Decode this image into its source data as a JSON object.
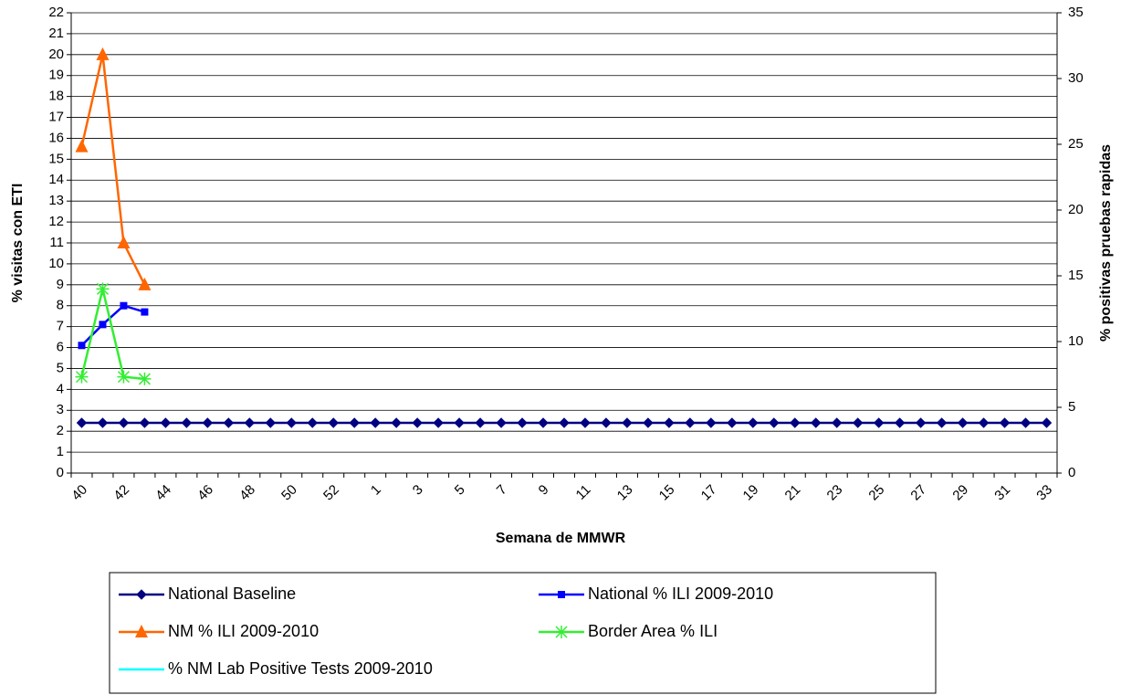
{
  "chart_data": {
    "type": "line",
    "xlabel": "Semana de MMWR",
    "ylabel": "% visitas con ETI",
    "y2label": "% positivas pruebas rapidas",
    "categories": [
      "40",
      null,
      "42",
      null,
      "44",
      null,
      "46",
      null,
      "48",
      null,
      "50",
      null,
      "52",
      null,
      "1",
      null,
      "3",
      null,
      "5",
      null,
      "7",
      null,
      "9",
      null,
      "11",
      null,
      "13",
      null,
      "15",
      null,
      "17",
      null,
      "19",
      null,
      "21",
      null,
      "23",
      null,
      "25",
      null,
      "27",
      null,
      "29",
      null,
      "31",
      null,
      "33"
    ],
    "ylim": [
      0,
      22
    ],
    "yticks": [
      0,
      1,
      2,
      3,
      4,
      5,
      6,
      7,
      8,
      9,
      10,
      11,
      12,
      13,
      14,
      15,
      16,
      17,
      18,
      19,
      20,
      21,
      22
    ],
    "y2lim": [
      0,
      35
    ],
    "y2ticks": [
      0,
      5,
      10,
      15,
      20,
      25,
      30,
      35
    ],
    "grid": true,
    "series": [
      {
        "name": "National Baseline",
        "color": "#000080",
        "marker": "diamond",
        "values": [
          2.4,
          2.4,
          2.4,
          2.4,
          2.4,
          2.4,
          2.4,
          2.4,
          2.4,
          2.4,
          2.4,
          2.4,
          2.4,
          2.4,
          2.4,
          2.4,
          2.4,
          2.4,
          2.4,
          2.4,
          2.4,
          2.4,
          2.4,
          2.4,
          2.4,
          2.4,
          2.4,
          2.4,
          2.4,
          2.4,
          2.4,
          2.4,
          2.4,
          2.4,
          2.4,
          2.4,
          2.4,
          2.4,
          2.4,
          2.4,
          2.4,
          2.4,
          2.4,
          2.4,
          2.4,
          2.4,
          2.4
        ]
      },
      {
        "name": "National % ILI 2009-2010",
        "color": "#0000ff",
        "marker": "square",
        "values": [
          6.1,
          7.1,
          8.0,
          7.7,
          null,
          null,
          null,
          null,
          null,
          null,
          null,
          null,
          null,
          null,
          null,
          null,
          null,
          null,
          null,
          null,
          null,
          null,
          null,
          null,
          null,
          null,
          null,
          null,
          null,
          null,
          null,
          null,
          null,
          null,
          null,
          null,
          null,
          null,
          null,
          null,
          null,
          null,
          null,
          null,
          null,
          null,
          null
        ]
      },
      {
        "name": "NM % ILI 2009-2010",
        "color": "#ff6600",
        "marker": "triangle",
        "values": [
          15.6,
          20,
          11,
          9,
          null,
          null,
          null,
          null,
          null,
          null,
          null,
          null,
          null,
          null,
          null,
          null,
          null,
          null,
          null,
          null,
          null,
          null,
          null,
          null,
          null,
          null,
          null,
          null,
          null,
          null,
          null,
          null,
          null,
          null,
          null,
          null,
          null,
          null,
          null,
          null,
          null,
          null,
          null,
          null,
          null,
          null,
          null
        ]
      },
      {
        "name": "Border Area % ILI",
        "color": "#33ee33",
        "marker": "asterisk",
        "values": [
          4.6,
          8.8,
          4.6,
          4.5,
          null,
          null,
          null,
          null,
          null,
          null,
          null,
          null,
          null,
          null,
          null,
          null,
          null,
          null,
          null,
          null,
          null,
          null,
          null,
          null,
          null,
          null,
          null,
          null,
          null,
          null,
          null,
          null,
          null,
          null,
          null,
          null,
          null,
          null,
          null,
          null,
          null,
          null,
          null,
          null,
          null,
          null,
          null
        ]
      },
      {
        "name": "% NM Lab Positive Tests 2009-2010",
        "color": "#00ffff",
        "marker": "none",
        "axis": "y2",
        "values": [
          null,
          null,
          null,
          null,
          null,
          null,
          null,
          null,
          null,
          null,
          null,
          null,
          null,
          null,
          null,
          null,
          null,
          null,
          null,
          null,
          null,
          null,
          null,
          null,
          null,
          null,
          null,
          null,
          null,
          null,
          null,
          null,
          null,
          null,
          null,
          null,
          null,
          null,
          null,
          null,
          null,
          null,
          null,
          null,
          null,
          null,
          null
        ]
      }
    ]
  }
}
